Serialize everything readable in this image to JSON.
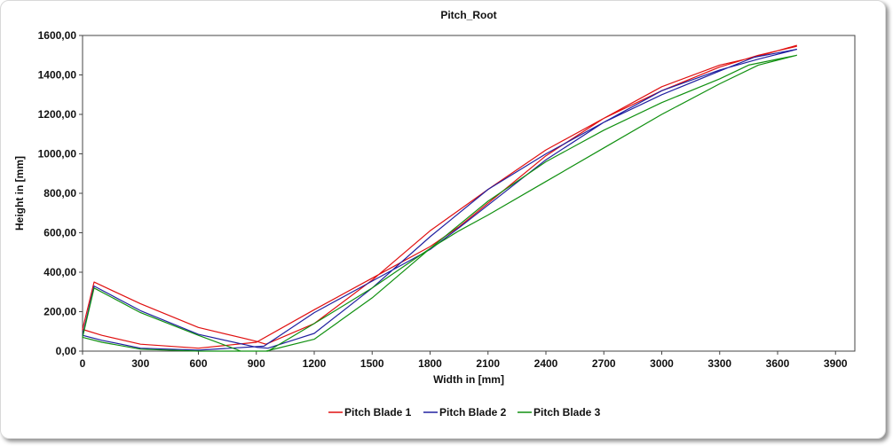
{
  "chart_data": {
    "type": "line",
    "title": "Pitch_Root",
    "xlabel": "Width in [mm]",
    "ylabel": "Height in [mm]",
    "xlim": [
      0,
      4000
    ],
    "ylim": [
      0,
      1600
    ],
    "x_ticks": [
      "0",
      "300",
      "600",
      "900",
      "1200",
      "1500",
      "1800",
      "2100",
      "2400",
      "2700",
      "3000",
      "3300",
      "3600",
      "3900"
    ],
    "y_ticks": [
      "0,00",
      "200,00",
      "400,00",
      "600,00",
      "800,00",
      "1000,00",
      "1200,00",
      "1400,00",
      "1600,00"
    ],
    "grid": false,
    "legend": "bottom",
    "series": [
      {
        "name": "Pitch Blade 1",
        "color": "#e01010",
        "x": [
          3700,
          3500,
          3300,
          3000,
          2700,
          2400,
          2100,
          1950,
          1800,
          1500,
          1200,
          900,
          600,
          300,
          100,
          0,
          60,
          300,
          600,
          900,
          950,
          1200,
          1500,
          1800,
          2100,
          2400,
          2700,
          3000,
          3300,
          3500,
          3700
        ],
        "y": [
          1550,
          1495,
          1450,
          1340,
          1180,
          990,
          750,
          630,
          530,
          370,
          210,
          45,
          15,
          35,
          80,
          110,
          350,
          240,
          120,
          50,
          35,
          140,
          360,
          610,
          820,
          1020,
          1180,
          1320,
          1440,
          1500,
          1545
        ]
      },
      {
        "name": "Pitch Blade 2",
        "color": "#2020a0",
        "x": [
          3700,
          3500,
          3300,
          3000,
          2700,
          2400,
          2100,
          1950,
          1800,
          1500,
          1200,
          940,
          600,
          300,
          100,
          0,
          60,
          300,
          600,
          900,
          960,
          1200,
          1500,
          1800,
          2100,
          2400,
          2700,
          3000,
          3300,
          3480,
          3700
        ],
        "y": [
          1530,
          1480,
          1425,
          1320,
          1160,
          970,
          740,
          625,
          515,
          355,
          195,
          25,
          5,
          15,
          55,
          80,
          330,
          205,
          85,
          20,
          15,
          90,
          320,
          580,
          820,
          1000,
          1160,
          1300,
          1420,
          1490,
          1530
        ]
      },
      {
        "name": "Pitch Blade 3",
        "color": "#109010",
        "x": [
          3700,
          3500,
          3300,
          3000,
          2700,
          2400,
          2100,
          1950,
          1800,
          1500,
          1200,
          960,
          600,
          300,
          100,
          0,
          60,
          300,
          600,
          820,
          950,
          1200,
          1500,
          1800,
          2100,
          2400,
          2700,
          3000,
          3300,
          3450,
          3700
        ],
        "y": [
          1500,
          1450,
          1355,
          1200,
          1030,
          860,
          690,
          610,
          520,
          320,
          140,
          0,
          0,
          10,
          45,
          70,
          320,
          195,
          80,
          0,
          0,
          60,
          270,
          520,
          760,
          960,
          1120,
          1260,
          1380,
          1450,
          1500
        ]
      }
    ]
  }
}
